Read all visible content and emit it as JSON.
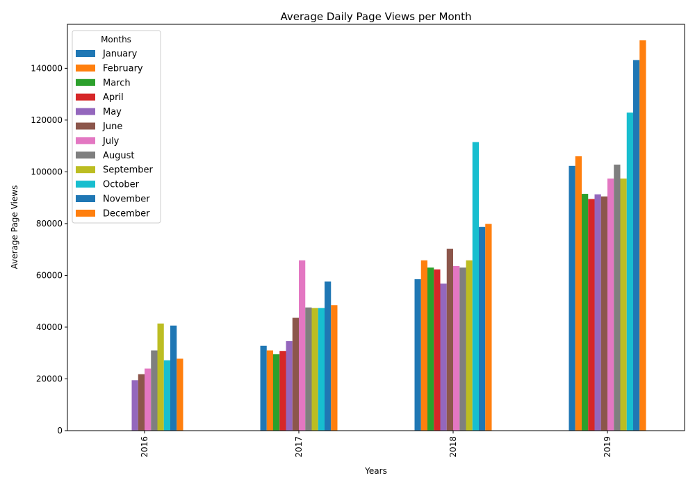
{
  "chart_data": {
    "type": "bar",
    "title": "Average Daily Page Views per Month",
    "xlabel": "Years",
    "ylabel": "Average Page Views",
    "categories": [
      "2016",
      "2017",
      "2018",
      "2019"
    ],
    "ylim": [
      0,
      157000
    ],
    "yticks": [
      0,
      20000,
      40000,
      60000,
      80000,
      100000,
      120000,
      140000
    ],
    "grid": false,
    "legend": {
      "title": "Months",
      "placement": "top-left"
    },
    "series": [
      {
        "name": "January",
        "color": "#1f77b4",
        "values": [
          null,
          32800,
          58500,
          102300
        ]
      },
      {
        "name": "February",
        "color": "#ff7f0e",
        "values": [
          null,
          31000,
          65800,
          106000
        ]
      },
      {
        "name": "March",
        "color": "#2ca02c",
        "values": [
          null,
          29500,
          63000,
          91500
        ]
      },
      {
        "name": "April",
        "color": "#d62728",
        "values": [
          null,
          30800,
          62300,
          89500
        ]
      },
      {
        "name": "May",
        "color": "#9467bd",
        "values": [
          19500,
          34600,
          56800,
          91300
        ]
      },
      {
        "name": "June",
        "color": "#8c564b",
        "values": [
          21800,
          43600,
          70300,
          90500
        ]
      },
      {
        "name": "July",
        "color": "#e377c2",
        "values": [
          24000,
          65800,
          63600,
          97400
        ]
      },
      {
        "name": "August",
        "color": "#7f7f7f",
        "values": [
          31000,
          47600,
          63000,
          102800
        ]
      },
      {
        "name": "September",
        "color": "#bcbd22",
        "values": [
          41400,
          47400,
          65800,
          97400
        ]
      },
      {
        "name": "October",
        "color": "#17becf",
        "values": [
          27200,
          47400,
          111500,
          122900
        ]
      },
      {
        "name": "November",
        "color": "#1f77b4",
        "values": [
          40600,
          57600,
          78700,
          143200
        ]
      },
      {
        "name": "December",
        "color": "#ff7f0e",
        "values": [
          27800,
          48500,
          79900,
          150800
        ]
      }
    ]
  }
}
